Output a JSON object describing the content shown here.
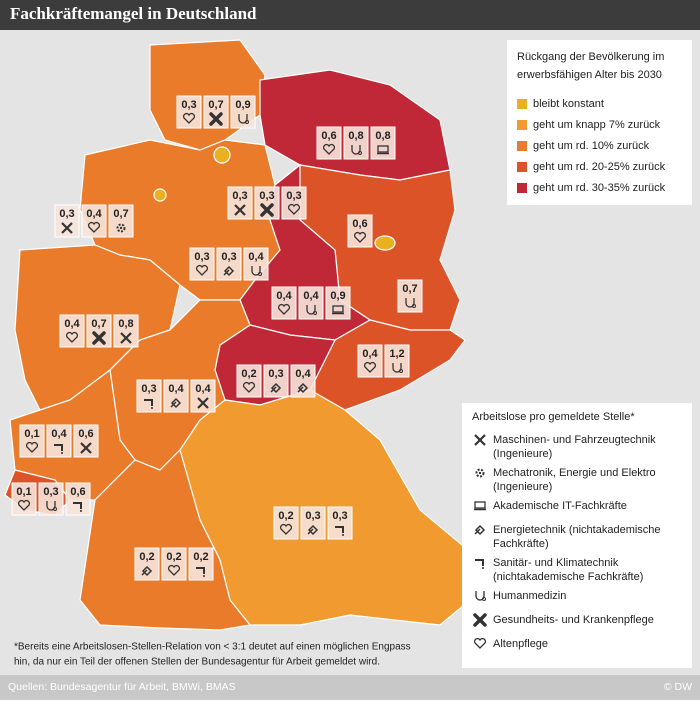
{
  "header": {
    "title": "Fachkräftemangel in Deutschland"
  },
  "population_legend": {
    "title": [
      "Rückgang der Bevölkerung im",
      "erwerbsfähigen Alter bis 2030"
    ],
    "items": [
      {
        "label": "bleibt konstant",
        "color": "#eab020"
      },
      {
        "label": "geht um knapp 7% zurück",
        "color": "#f09a30"
      },
      {
        "label": "geht um rd. 10% zurück",
        "color": "#e97b2a"
      },
      {
        "label": "geht um rd. 20-25% zurück",
        "color": "#dd5328"
      },
      {
        "label": "geht um rd. 30-35% zurück",
        "color": "#c02838"
      }
    ]
  },
  "jobs_legend": {
    "title": "Arbeitslose pro gemeldete Stelle*",
    "items": [
      [
        "Maschinen- und Fahrzeugtechnik",
        "(Ingenieure)"
      ],
      [
        "Mechatronik, Energie und Elektro",
        "(Ingenieure)"
      ],
      [
        "Akademische IT-Fachkräfte"
      ],
      [
        "Energietechnik (nichtakademische",
        "Fachkräfte)"
      ],
      [
        "Sanitär- und Klimatechnik",
        "(nichtakademische Fachkräfte)"
      ],
      [
        "Humanmedizin"
      ],
      [
        "Gesundheits- und Krankenpflege"
      ],
      [
        "Altenpflege"
      ]
    ]
  },
  "regions": [
    [
      "0,3",
      "0,7",
      "0,9"
    ],
    [
      "0,6",
      "0,8",
      "0,8"
    ],
    [
      "0,3",
      "0,3",
      "0,3"
    ],
    [
      "0,3",
      "0,4",
      "0,7"
    ],
    [
      "0,6"
    ],
    [
      "0,3",
      "0,3",
      "0,4"
    ],
    [
      "0,7"
    ],
    [
      "0,4",
      "0,4",
      "0,9"
    ],
    [
      "0,4",
      "0,7",
      "0,8"
    ],
    [
      "0,4",
      "1,2"
    ],
    [
      "0,2",
      "0,3",
      "0,4"
    ],
    [
      "0,3",
      "0,4",
      "0,4"
    ],
    [
      "0,1",
      "0,4",
      "0,6"
    ],
    [
      "0,1",
      "0,3",
      "0,6"
    ],
    [
      "0,2",
      "0,3",
      "0,3"
    ],
    [
      "0,2",
      "0,2",
      "0,2"
    ]
  ],
  "footnote": [
    "*Bereits eine Arbeitslosen-Stellen-Relation von < 3:1 deutet auf einen möglichen Engpass",
    "hin, da nur ein Teil der offenen Stellen der Bundesagentur für  Arbeit  gemeldet wird."
  ],
  "footer": {
    "source": "Quellen: Bundesagentur für Arbeit, BMWi, BMAS",
    "credit": "© DW"
  }
}
